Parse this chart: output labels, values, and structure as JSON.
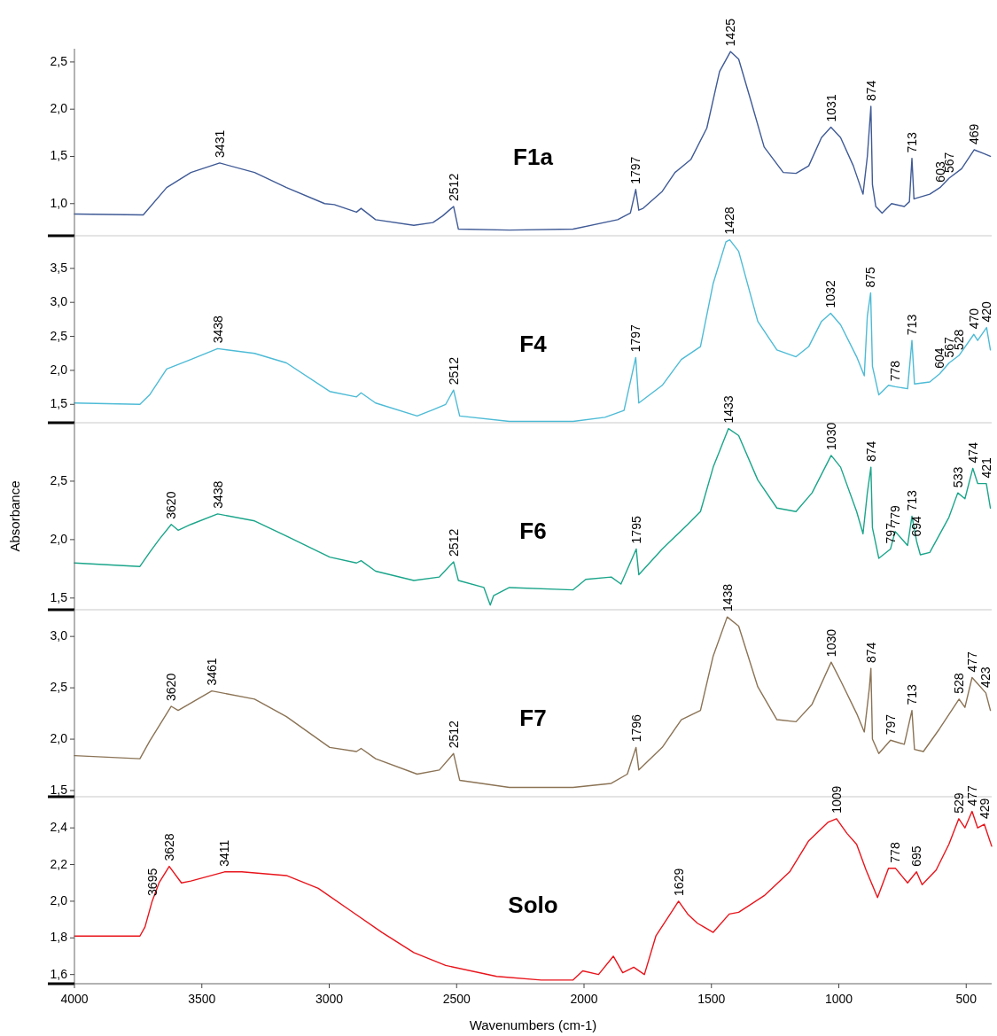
{
  "chart_data": [
    {
      "type": "line",
      "xlim": [
        4000,
        400
      ],
      "ylim": [
        0.66,
        2.64
      ],
      "yticks": [
        {
          "value": 1,
          "label": "1,0"
        },
        {
          "value": 1.5,
          "label": "1,5"
        },
        {
          "value": 2,
          "label": "2,0"
        },
        {
          "value": 2.5,
          "label": "2,5"
        }
      ],
      "tick_labels": "y",
      "grid": false,
      "series": [
        {
          "name": "F1a",
          "color": "#3f5a96",
          "x": [
            4000,
            3730,
            3638,
            3543,
            3430,
            3293,
            3168,
            3018,
            2980,
            2893,
            2875,
            2818,
            2668,
            2593,
            2555,
            2512,
            2493,
            2293,
            2043,
            1868,
            1818,
            1797,
            1785,
            1768,
            1693,
            1643,
            1580,
            1518,
            1468,
            1425,
            1393,
            1343,
            1293,
            1218,
            1168,
            1118,
            1068,
            1031,
            993,
            943,
            905,
            888,
            874,
            868,
            855,
            830,
            793,
            743,
            723,
            713,
            705,
            643,
            603,
            567,
            518,
            469,
            430,
            405
          ],
          "values": [
            0.89,
            0.88,
            1.17,
            1.33,
            1.43,
            1.33,
            1.17,
            1.0,
            0.99,
            0.91,
            0.95,
            0.83,
            0.77,
            0.8,
            0.87,
            0.97,
            0.73,
            0.72,
            0.73,
            0.83,
            0.9,
            1.15,
            0.93,
            0.95,
            1.13,
            1.33,
            1.47,
            1.8,
            2.4,
            2.61,
            2.53,
            2.07,
            1.6,
            1.33,
            1.32,
            1.4,
            1.7,
            1.81,
            1.7,
            1.4,
            1.1,
            1.5,
            2.03,
            1.2,
            0.97,
            0.9,
            1.0,
            0.97,
            1.02,
            1.48,
            1.05,
            1.1,
            1.17,
            1.27,
            1.37,
            1.57,
            1.53,
            1.5
          ]
        }
      ],
      "annotations": [
        {
          "text": "3431",
          "x": 3431,
          "y": 1.43
        },
        {
          "text": "2512",
          "x": 2512,
          "y": 0.97
        },
        {
          "text": "1797",
          "x": 1797,
          "y": 1.15
        },
        {
          "text": "1425",
          "x": 1425,
          "y": 2.61
        },
        {
          "text": "1031",
          "x": 1031,
          "y": 1.81
        },
        {
          "text": "874",
          "x": 874,
          "y": 2.03
        },
        {
          "text": "713",
          "x": 713,
          "y": 1.48
        },
        {
          "text": "603",
          "x": 603,
          "y": 1.17
        },
        {
          "text": "567",
          "x": 567,
          "y": 1.27
        },
        {
          "text": "469",
          "x": 469,
          "y": 1.57
        }
      ]
    },
    {
      "type": "line",
      "xlim": [
        4000,
        400
      ],
      "ylim": [
        1.23,
        3.98
      ],
      "yticks": [
        {
          "value": 1.5,
          "label": "1,5"
        },
        {
          "value": 2,
          "label": "2,0"
        },
        {
          "value": 2.5,
          "label": "2,5"
        },
        {
          "value": 3,
          "label": "3,0"
        },
        {
          "value": 3.5,
          "label": "3,5"
        }
      ],
      "tick_labels": "y",
      "grid": false,
      "series": [
        {
          "name": "F4",
          "color": "#4dbbd6",
          "x": [
            4000,
            3743,
            3705,
            3638,
            3543,
            3438,
            3293,
            3168,
            2998,
            2893,
            2875,
            2818,
            2655,
            2593,
            2543,
            2512,
            2488,
            2293,
            2043,
            1918,
            1843,
            1797,
            1785,
            1693,
            1618,
            1543,
            1493,
            1443,
            1428,
            1393,
            1318,
            1243,
            1168,
            1118,
            1068,
            1032,
            993,
            930,
            900,
            888,
            875,
            868,
            843,
            805,
            778,
            730,
            713,
            703,
            643,
            604,
            567,
            528,
            470,
            455,
            420,
            405
          ],
          "values": [
            1.52,
            1.5,
            1.64,
            2.02,
            2.16,
            2.32,
            2.25,
            2.11,
            1.69,
            1.61,
            1.67,
            1.52,
            1.33,
            1.42,
            1.5,
            1.71,
            1.33,
            1.25,
            1.25,
            1.31,
            1.41,
            2.19,
            1.52,
            1.78,
            2.16,
            2.35,
            3.28,
            3.89,
            3.92,
            3.75,
            2.72,
            2.3,
            2.2,
            2.35,
            2.72,
            2.84,
            2.67,
            2.2,
            1.92,
            2.8,
            3.14,
            2.06,
            1.64,
            1.78,
            1.76,
            1.73,
            2.44,
            1.8,
            1.83,
            1.95,
            2.11,
            2.22,
            2.53,
            2.44,
            2.63,
            2.3
          ]
        }
      ],
      "annotations": [
        {
          "text": "3438",
          "x": 3438,
          "y": 2.32
        },
        {
          "text": "2512",
          "x": 2512,
          "y": 1.71
        },
        {
          "text": "1797",
          "x": 1797,
          "y": 2.19
        },
        {
          "text": "1428",
          "x": 1428,
          "y": 3.92
        },
        {
          "text": "1032",
          "x": 1032,
          "y": 2.84
        },
        {
          "text": "875",
          "x": 875,
          "y": 3.14
        },
        {
          "text": "778",
          "x": 778,
          "y": 1.76
        },
        {
          "text": "713",
          "x": 713,
          "y": 2.44
        },
        {
          "text": "604",
          "x": 604,
          "y": 1.95
        },
        {
          "text": "567",
          "x": 567,
          "y": 2.11
        },
        {
          "text": "528",
          "x": 528,
          "y": 2.22
        },
        {
          "text": "470",
          "x": 470,
          "y": 2.53
        },
        {
          "text": "420",
          "x": 420,
          "y": 2.63
        }
      ]
    },
    {
      "type": "line",
      "xlim": [
        4000,
        400
      ],
      "ylim": [
        1.4,
        3.0
      ],
      "yticks": [
        {
          "value": 1.5,
          "label": "1,5"
        },
        {
          "value": 2,
          "label": "2,0"
        },
        {
          "value": 2.5,
          "label": "2,5"
        }
      ],
      "tick_labels": "y",
      "grid": false,
      "ylabel": "Absorbance",
      "series": [
        {
          "name": "F6",
          "color": "#1aa58a",
          "x": [
            4000,
            3743,
            3705,
            3668,
            3620,
            3593,
            3543,
            3438,
            3293,
            3168,
            2998,
            2893,
            2875,
            2818,
            2668,
            2568,
            2512,
            2493,
            2393,
            2368,
            2355,
            2293,
            2043,
            1993,
            1893,
            1855,
            1795,
            1785,
            1693,
            1593,
            1543,
            1493,
            1433,
            1393,
            1318,
            1243,
            1168,
            1105,
            1030,
            993,
            930,
            905,
            888,
            874,
            868,
            843,
            797,
            779,
            730,
            713,
            694,
            680,
            643,
            568,
            533,
            505,
            474,
            455,
            421,
            405
          ],
          "values": [
            1.8,
            1.77,
            1.89,
            2.0,
            2.13,
            2.08,
            2.13,
            2.22,
            2.16,
            2.03,
            1.85,
            1.8,
            1.82,
            1.73,
            1.65,
            1.68,
            1.81,
            1.65,
            1.59,
            1.44,
            1.52,
            1.59,
            1.57,
            1.66,
            1.68,
            1.62,
            1.92,
            1.7,
            1.92,
            2.13,
            2.24,
            2.62,
            2.95,
            2.89,
            2.51,
            2.27,
            2.24,
            2.4,
            2.72,
            2.62,
            2.24,
            2.05,
            2.4,
            2.62,
            2.1,
            1.84,
            1.92,
            2.07,
            1.95,
            2.2,
            1.98,
            1.87,
            1.89,
            2.19,
            2.4,
            2.35,
            2.61,
            2.48,
            2.48,
            2.27
          ]
        }
      ],
      "annotations": [
        {
          "text": "3620",
          "x": 3620,
          "y": 2.13
        },
        {
          "text": "3438",
          "x": 3438,
          "y": 2.22
        },
        {
          "text": "2512",
          "x": 2512,
          "y": 1.81
        },
        {
          "text": "1795",
          "x": 1795,
          "y": 1.92
        },
        {
          "text": "1433",
          "x": 1433,
          "y": 2.95
        },
        {
          "text": "1030",
          "x": 1030,
          "y": 2.72
        },
        {
          "text": "874",
          "x": 874,
          "y": 2.62
        },
        {
          "text": "797",
          "x": 797,
          "y": 1.92
        },
        {
          "text": "779",
          "x": 779,
          "y": 2.07
        },
        {
          "text": "713",
          "x": 713,
          "y": 2.2
        },
        {
          "text": "694",
          "x": 694,
          "y": 1.98
        },
        {
          "text": "533",
          "x": 533,
          "y": 2.4
        },
        {
          "text": "474",
          "x": 474,
          "y": 2.61
        },
        {
          "text": "421",
          "x": 421,
          "y": 2.48
        }
      ]
    },
    {
      "type": "line",
      "xlim": [
        4000,
        400
      ],
      "ylim": [
        1.44,
        3.26
      ],
      "yticks": [
        {
          "value": 1.5,
          "label": "1,5"
        },
        {
          "value": 2,
          "label": "2,0"
        },
        {
          "value": 2.5,
          "label": "2,5"
        },
        {
          "value": 3,
          "label": "3,0"
        }
      ],
      "tick_labels": "y",
      "grid": false,
      "series": [
        {
          "name": "F7",
          "color": "#8b7355",
          "x": [
            4000,
            3743,
            3705,
            3620,
            3593,
            3461,
            3293,
            3168,
            2998,
            2893,
            2875,
            2818,
            2655,
            2568,
            2512,
            2488,
            2293,
            2043,
            1893,
            1830,
            1796,
            1785,
            1693,
            1618,
            1543,
            1493,
            1438,
            1393,
            1318,
            1243,
            1168,
            1105,
            1030,
            993,
            930,
            900,
            880,
            874,
            868,
            843,
            797,
            743,
            713,
            703,
            668,
            605,
            528,
            505,
            477,
            455,
            423,
            405
          ],
          "values": [
            1.84,
            1.81,
            1.98,
            2.32,
            2.28,
            2.47,
            2.39,
            2.22,
            1.92,
            1.88,
            1.91,
            1.81,
            1.66,
            1.7,
            1.86,
            1.6,
            1.53,
            1.53,
            1.57,
            1.66,
            1.92,
            1.7,
            1.92,
            2.19,
            2.28,
            2.81,
            3.19,
            3.1,
            2.51,
            2.19,
            2.17,
            2.34,
            2.75,
            2.57,
            2.25,
            2.07,
            2.5,
            2.69,
            2.0,
            1.86,
            1.99,
            1.95,
            2.28,
            1.9,
            1.88,
            2.1,
            2.39,
            2.31,
            2.6,
            2.54,
            2.45,
            2.28
          ]
        }
      ],
      "annotations": [
        {
          "text": "3620",
          "x": 3620,
          "y": 2.32
        },
        {
          "text": "3461",
          "x": 3461,
          "y": 2.47
        },
        {
          "text": "2512",
          "x": 2512,
          "y": 1.86
        },
        {
          "text": "1796",
          "x": 1796,
          "y": 1.92
        },
        {
          "text": "1438",
          "x": 1438,
          "y": 3.19
        },
        {
          "text": "1030",
          "x": 1030,
          "y": 2.75
        },
        {
          "text": "874",
          "x": 874,
          "y": 2.69
        },
        {
          "text": "797",
          "x": 797,
          "y": 1.99
        },
        {
          "text": "713",
          "x": 713,
          "y": 2.28
        },
        {
          "text": "528",
          "x": 528,
          "y": 2.39
        },
        {
          "text": "477",
          "x": 477,
          "y": 2.6
        },
        {
          "text": "423",
          "x": 423,
          "y": 2.45
        }
      ]
    },
    {
      "type": "line",
      "xlim": [
        4000,
        400
      ],
      "ylim": [
        1.55,
        2.57
      ],
      "yticks": [
        {
          "value": 1.6,
          "label": "1,6"
        },
        {
          "value": 1.8,
          "label": "1,8"
        },
        {
          "value": 2,
          "label": "2,0"
        },
        {
          "value": 2.2,
          "label": "2,2"
        },
        {
          "value": 2.4,
          "label": "2,4"
        }
      ],
      "xticks": [
        4000,
        3500,
        3000,
        2500,
        2000,
        1500,
        1000,
        500
      ],
      "xlabel": "Wavenumbers (cm-1)",
      "grid": false,
      "series": [
        {
          "name": "Solo",
          "color": "#e8141b",
          "x": [
            4000,
            3743,
            3723,
            3695,
            3668,
            3628,
            3580,
            3543,
            3411,
            3343,
            3168,
            3043,
            2918,
            2793,
            2668,
            2543,
            2343,
            2168,
            2043,
            2005,
            1943,
            1885,
            1848,
            1805,
            1763,
            1718,
            1629,
            1593,
            1555,
            1530,
            1493,
            1430,
            1393,
            1293,
            1193,
            1118,
            1043,
            1009,
            968,
            930,
            893,
            848,
            805,
            778,
            730,
            695,
            673,
            618,
            568,
            529,
            505,
            477,
            455,
            429,
            400
          ],
          "values": [
            1.81,
            1.81,
            1.86,
            2.0,
            2.1,
            2.19,
            2.1,
            2.11,
            2.16,
            2.16,
            2.14,
            2.07,
            1.95,
            1.83,
            1.72,
            1.65,
            1.59,
            1.57,
            1.57,
            1.62,
            1.6,
            1.7,
            1.61,
            1.64,
            1.6,
            1.81,
            2.0,
            1.93,
            1.88,
            1.86,
            1.83,
            1.93,
            1.94,
            2.03,
            2.16,
            2.33,
            2.43,
            2.45,
            2.37,
            2.31,
            2.17,
            2.02,
            2.18,
            2.18,
            2.1,
            2.16,
            2.09,
            2.17,
            2.31,
            2.45,
            2.4,
            2.49,
            2.4,
            2.42,
            2.3
          ]
        }
      ],
      "annotations": [
        {
          "text": "3695",
          "x": 3695,
          "y": 2.0
        },
        {
          "text": "3628",
          "x": 3628,
          "y": 2.19
        },
        {
          "text": "3411",
          "x": 3411,
          "y": 2.16
        },
        {
          "text": "1629",
          "x": 1629,
          "y": 2.0
        },
        {
          "text": "1009",
          "x": 1009,
          "y": 2.45
        },
        {
          "text": "778",
          "x": 778,
          "y": 2.18
        },
        {
          "text": "695",
          "x": 695,
          "y": 2.16
        },
        {
          "text": "529",
          "x": 529,
          "y": 2.45
        },
        {
          "text": "477",
          "x": 477,
          "y": 2.49
        },
        {
          "text": "429",
          "x": 429,
          "y": 2.42
        }
      ]
    }
  ]
}
